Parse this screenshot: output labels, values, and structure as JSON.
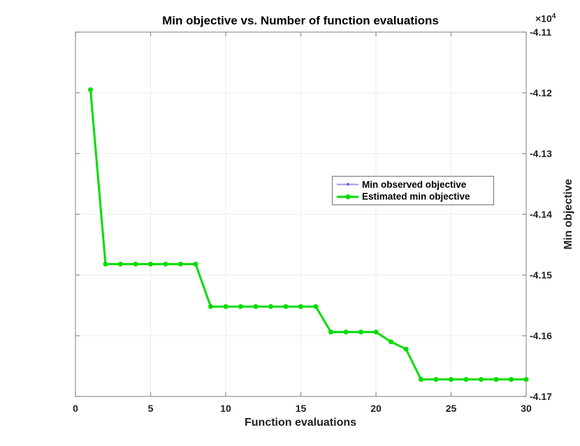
{
  "title": "Min objective vs. Number of function evaluations",
  "axis": {
    "xlabel": "Function evaluations",
    "ylabel": "Min objective",
    "exponent_base": "×10",
    "exponent_power": "4"
  },
  "legend": {
    "items": [
      {
        "label": "Min observed objective",
        "color": "#9a9af2",
        "marker_color": "#6c6ce0",
        "line_width": 1.5,
        "marker_size": 4
      },
      {
        "label": "Estimated min objective",
        "color": "#00dd00",
        "marker_color": "#00dd00",
        "line_width": 3,
        "marker_size": 7
      }
    ]
  },
  "chart_data": {
    "type": "line",
    "title": "Min objective vs. Number of function evaluations",
    "xlabel": "Function evaluations",
    "ylabel": "Min objective",
    "xlim": [
      0,
      30
    ],
    "ylim": [
      -41700,
      -41100
    ],
    "x_ticks": [
      0,
      5,
      10,
      15,
      20,
      25,
      30
    ],
    "x_tick_labels": [
      "0",
      "5",
      "10",
      "15",
      "20",
      "25",
      "30"
    ],
    "y_ticks": [
      -41100,
      -41200,
      -41300,
      -41400,
      -41500,
      -41600,
      -41700
    ],
    "y_tick_labels": [
      "-4.11",
      "-4.12",
      "-4.13",
      "-4.14",
      "-4.15",
      "-4.16",
      "-4.17"
    ],
    "grid": true,
    "legend_position": "right-center",
    "colors": {
      "grid": "#ebebeb",
      "axis_box": "#969696",
      "tick": "#8c8c8c"
    },
    "x": [
      1,
      2,
      3,
      4,
      5,
      6,
      7,
      8,
      9,
      10,
      11,
      12,
      13,
      14,
      15,
      16,
      17,
      18,
      19,
      20,
      21,
      22,
      23,
      24,
      25,
      26,
      27,
      28,
      29,
      30
    ],
    "series": [
      {
        "name": "Min observed objective",
        "y": [
          -41195,
          -41482,
          -41482,
          -41482,
          -41482,
          -41482,
          -41482,
          -41482,
          -41552,
          -41552,
          -41552,
          -41552,
          -41552,
          -41552,
          -41552,
          -41552,
          -41594,
          -41594,
          -41594,
          -41594,
          -41610,
          -41622,
          -41672,
          -41672,
          -41672,
          -41672,
          -41672,
          -41672,
          -41672,
          -41672
        ]
      },
      {
        "name": "Estimated min objective",
        "y": [
          -41195,
          -41482,
          -41482,
          -41482,
          -41482,
          -41482,
          -41482,
          -41482,
          -41552,
          -41552,
          -41552,
          -41552,
          -41552,
          -41552,
          -41552,
          -41552,
          -41594,
          -41594,
          -41594,
          -41594,
          -41610,
          -41622,
          -41672,
          -41672,
          -41672,
          -41672,
          -41672,
          -41672,
          -41672,
          -41672
        ]
      }
    ]
  }
}
